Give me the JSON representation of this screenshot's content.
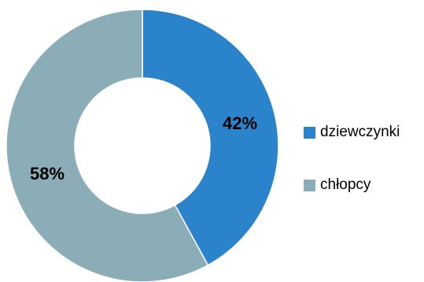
{
  "chart_data": {
    "type": "pie",
    "subtype": "donut",
    "title": "",
    "legend_position": "right",
    "series": [
      {
        "name": "dziewczynki",
        "value": 42,
        "label": "42%",
        "color": "#2b83cb"
      },
      {
        "name": "chłopcy",
        "value": 58,
        "label": "58%",
        "color": "#8aadb8"
      }
    ]
  }
}
